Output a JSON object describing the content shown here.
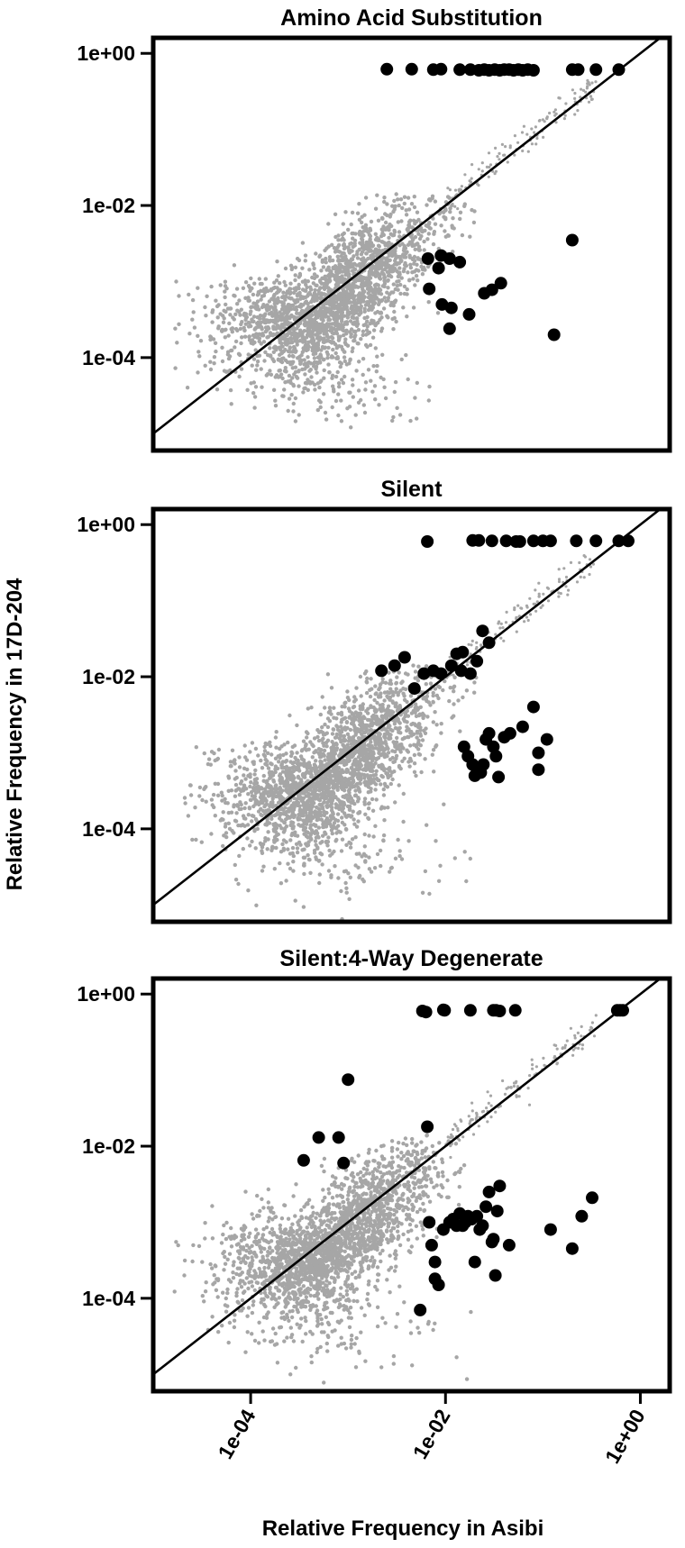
{
  "chart_data": {
    "type": "scatter",
    "xlabel": "Relative Frequency in Asibi",
    "ylabel": "Relative Frequency in 17D-204",
    "x_scale": "log10",
    "y_scale": "log10",
    "xlim": [
      1e-05,
      2.0
    ],
    "ylim": [
      6e-06,
      1.6
    ],
    "x_ticks": [
      "1e-04",
      "1e-02",
      "1e+00"
    ],
    "y_ticks": [
      "1e-04",
      "1e-02",
      "1e+00"
    ],
    "colors": {
      "background_cloud": "#a6a6a6",
      "highlight": "#000000",
      "diagonal": "#000000"
    },
    "diagonal": "y = x",
    "panels": [
      {
        "title": "Amino Acid Substitution",
        "highlighted_points": [
          [
            0.0025,
            0.62
          ],
          [
            0.0045,
            0.62
          ],
          [
            0.0075,
            0.61
          ],
          [
            0.009,
            0.62
          ],
          [
            0.014,
            0.61
          ],
          [
            0.018,
            0.61
          ],
          [
            0.022,
            0.6
          ],
          [
            0.025,
            0.61
          ],
          [
            0.028,
            0.6
          ],
          [
            0.032,
            0.61
          ],
          [
            0.036,
            0.6
          ],
          [
            0.04,
            0.61
          ],
          [
            0.045,
            0.61
          ],
          [
            0.05,
            0.6
          ],
          [
            0.056,
            0.61
          ],
          [
            0.062,
            0.6
          ],
          [
            0.07,
            0.61
          ],
          [
            0.08,
            0.6
          ],
          [
            0.2,
            0.61
          ],
          [
            0.23,
            0.61
          ],
          [
            0.35,
            0.61
          ],
          [
            0.6,
            0.61
          ],
          [
            0.2,
            0.0035
          ],
          [
            0.0066,
            0.002
          ],
          [
            0.009,
            0.0022
          ],
          [
            0.011,
            0.002
          ],
          [
            0.014,
            0.0018
          ],
          [
            0.0085,
            0.0015
          ],
          [
            0.0068,
            0.0008
          ],
          [
            0.0092,
            0.0005
          ],
          [
            0.0115,
            0.00045
          ],
          [
            0.011,
            0.00024
          ],
          [
            0.0175,
            0.00037
          ],
          [
            0.025,
            0.0007
          ],
          [
            0.03,
            0.00078
          ],
          [
            0.037,
            0.00095
          ],
          [
            0.13,
            0.0002
          ]
        ]
      },
      {
        "title": "Silent",
        "highlighted_points": [
          [
            0.0065,
            0.6
          ],
          [
            0.019,
            0.62
          ],
          [
            0.022,
            0.62
          ],
          [
            0.03,
            0.61
          ],
          [
            0.042,
            0.61
          ],
          [
            0.053,
            0.6
          ],
          [
            0.058,
            0.6
          ],
          [
            0.08,
            0.61
          ],
          [
            0.1,
            0.61
          ],
          [
            0.12,
            0.61
          ],
          [
            0.22,
            0.61
          ],
          [
            0.35,
            0.61
          ],
          [
            0.6,
            0.61
          ],
          [
            0.75,
            0.61
          ],
          [
            0.0022,
            0.012
          ],
          [
            0.003,
            0.014
          ],
          [
            0.0038,
            0.018
          ],
          [
            0.0048,
            0.007
          ],
          [
            0.006,
            0.011
          ],
          [
            0.0075,
            0.012
          ],
          [
            0.009,
            0.011
          ],
          [
            0.0115,
            0.014
          ],
          [
            0.013,
            0.02
          ],
          [
            0.015,
            0.021
          ],
          [
            0.0145,
            0.012
          ],
          [
            0.018,
            0.011
          ],
          [
            0.021,
            0.016
          ],
          [
            0.024,
            0.04
          ],
          [
            0.028,
            0.028
          ],
          [
            0.08,
            0.004
          ],
          [
            0.09,
            0.001
          ],
          [
            0.11,
            0.0015
          ],
          [
            0.0155,
            0.0012
          ],
          [
            0.017,
            0.0009
          ],
          [
            0.019,
            0.0007
          ],
          [
            0.02,
            0.0005
          ],
          [
            0.0215,
            0.0006
          ],
          [
            0.023,
            0.00055
          ],
          [
            0.0245,
            0.0007
          ],
          [
            0.026,
            0.0015
          ],
          [
            0.028,
            0.0018
          ],
          [
            0.031,
            0.0012
          ],
          [
            0.033,
            0.0009
          ],
          [
            0.035,
            0.00048
          ],
          [
            0.04,
            0.0016
          ],
          [
            0.046,
            0.0018
          ],
          [
            0.062,
            0.0022
          ],
          [
            0.09,
            0.0006
          ]
        ]
      },
      {
        "title": "Silent:4-Way Degenerate",
        "highlighted_points": [
          [
            0.0058,
            0.6
          ],
          [
            0.0063,
            0.58
          ],
          [
            0.0095,
            0.62
          ],
          [
            0.0098,
            0.61
          ],
          [
            0.018,
            0.61
          ],
          [
            0.031,
            0.61
          ],
          [
            0.033,
            0.61
          ],
          [
            0.036,
            0.6
          ],
          [
            0.052,
            0.61
          ],
          [
            0.58,
            0.61
          ],
          [
            0.62,
            0.61
          ],
          [
            0.66,
            0.61
          ],
          [
            0.001,
            0.075
          ],
          [
            0.00035,
            0.0065
          ],
          [
            0.0005,
            0.013
          ],
          [
            0.0008,
            0.013
          ],
          [
            0.0009,
            0.006
          ],
          [
            0.0065,
            0.018
          ],
          [
            0.0068,
            0.001
          ],
          [
            0.0072,
            0.0005
          ],
          [
            0.0078,
            0.00018
          ],
          [
            0.0085,
            0.00015
          ],
          [
            0.0095,
            0.0008
          ],
          [
            0.011,
            0.001
          ],
          [
            0.012,
            0.0011
          ],
          [
            0.013,
            0.0009
          ],
          [
            0.014,
            0.0013
          ],
          [
            0.015,
            0.0009
          ],
          [
            0.016,
            0.001
          ],
          [
            0.017,
            0.0012
          ],
          [
            0.0185,
            0.0011
          ],
          [
            0.02,
            0.0003
          ],
          [
            0.021,
            0.0012
          ],
          [
            0.0225,
            0.0008
          ],
          [
            0.024,
            0.0009
          ],
          [
            0.026,
            0.0016
          ],
          [
            0.028,
            0.0025
          ],
          [
            0.03,
            0.00055
          ],
          [
            0.031,
            0.0006
          ],
          [
            0.0325,
            0.0002
          ],
          [
            0.034,
            0.0014
          ],
          [
            0.036,
            0.003
          ],
          [
            0.045,
            0.0005
          ],
          [
            0.12,
            0.0008
          ],
          [
            0.2,
            0.00045
          ],
          [
            0.25,
            0.0012
          ],
          [
            0.32,
            0.0021
          ],
          [
            0.0078,
            0.0003
          ],
          [
            0.0055,
            7e-05
          ]
        ]
      }
    ]
  }
}
